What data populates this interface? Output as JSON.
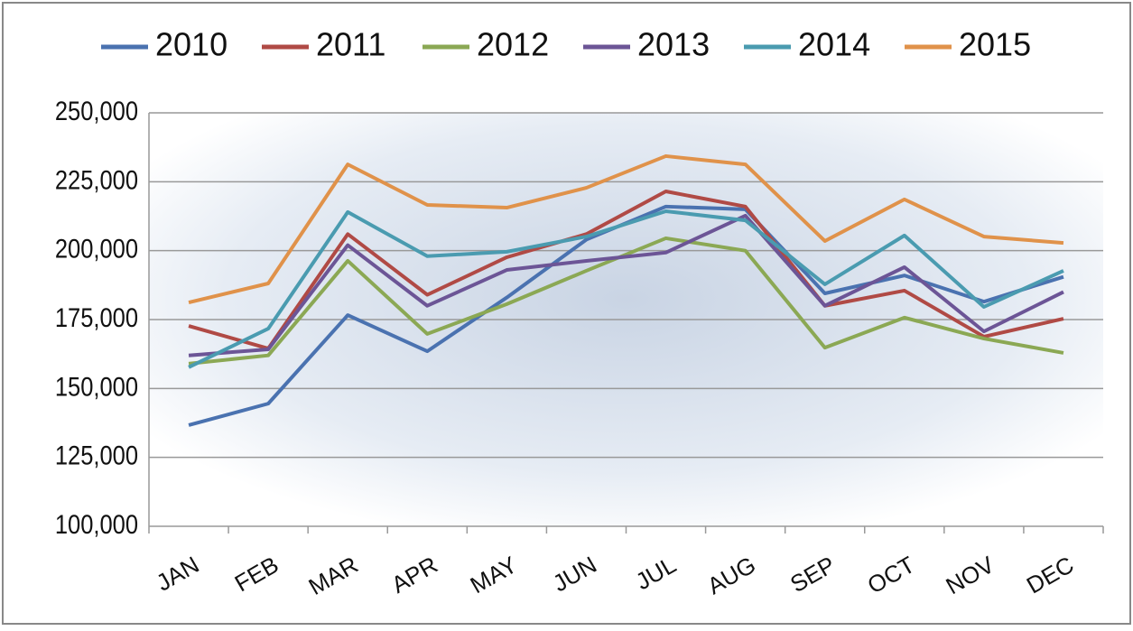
{
  "chart_data": {
    "type": "line",
    "categories": [
      "JAN",
      "FEB",
      "MAR",
      "APR",
      "MAY",
      "JUN",
      "JUL",
      "AUG",
      "SEP",
      "OCT",
      "NOV",
      "DEC"
    ],
    "series": [
      {
        "name": "2010",
        "color": "#4a72b0",
        "values": [
          136700,
          144500,
          176600,
          163500,
          183000,
          204000,
          216000,
          215000,
          184500,
          191000,
          181500,
          190500
        ]
      },
      {
        "name": "2011",
        "color": "#b04a45",
        "values": [
          172700,
          164500,
          206000,
          184000,
          197600,
          206000,
          221500,
          216000,
          180000,
          185500,
          168800,
          175300
        ]
      },
      {
        "name": "2012",
        "color": "#8ba854",
        "values": [
          159000,
          162000,
          196300,
          169800,
          180600,
          192700,
          204500,
          200000,
          164800,
          175700,
          168100,
          162900
        ]
      },
      {
        "name": "2013",
        "color": "#6c5596",
        "values": [
          162000,
          164200,
          202000,
          180000,
          193000,
          196300,
          199300,
          212700,
          180000,
          194000,
          170700,
          185000
        ]
      },
      {
        "name": "2014",
        "color": "#4a9bb0",
        "values": [
          157700,
          171700,
          214000,
          198000,
          199600,
          205100,
          214300,
          211000,
          187800,
          205500,
          179600,
          192700
        ]
      },
      {
        "name": "2015",
        "color": "#e0924a",
        "values": [
          181200,
          188100,
          231300,
          216600,
          215600,
          222800,
          234300,
          231300,
          203500,
          218600,
          205100,
          202800
        ]
      }
    ],
    "ylim": [
      100000,
      250000
    ],
    "yticks": [
      {
        "value": 100000,
        "label": "100,000"
      },
      {
        "value": 125000,
        "label": "125,000"
      },
      {
        "value": 150000,
        "label": "150,000"
      },
      {
        "value": 175000,
        "label": "175,000"
      },
      {
        "value": 200000,
        "label": "200,000"
      },
      {
        "value": 225000,
        "label": "225,000"
      },
      {
        "value": 250000,
        "label": "250,000"
      }
    ],
    "grid": true,
    "legend": "top"
  }
}
